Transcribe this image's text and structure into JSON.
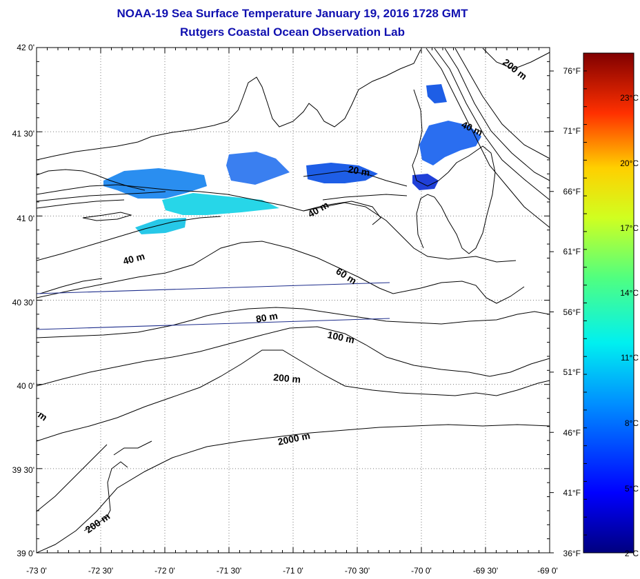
{
  "title": "NOAA-19 Sea Surface Temperature January 19, 2016 1728 GMT",
  "subtitle": "Rutgers Coastal Ocean Observation Lab",
  "lat_labels": [
    "42 0'",
    "41 30'",
    "41 0'",
    "40 30'",
    "40 0'",
    "39 30'",
    "39 0'"
  ],
  "lon_labels": [
    "-73 0'",
    "-72 30'",
    "-72 0'",
    "-71 30'",
    "-71 0'",
    "-70 30'",
    "-70 0'",
    "-69 30'",
    "-69 0'"
  ],
  "fahrenheit_labels": [
    "76°F",
    "71°F",
    "66°F",
    "61°F",
    "56°F",
    "51°F",
    "46°F",
    "41°F",
    "36°F"
  ],
  "celsius_labels": [
    "23°C",
    "20°C",
    "17°C",
    "14°C",
    "11°C",
    "8°C",
    "5°C",
    "2°C"
  ],
  "contour_labels": [
    "200 m",
    "40 m",
    "20 m",
    "40 m",
    "40 m",
    "60 m",
    "80 m",
    "100 m",
    "200 m",
    "2000 m",
    "200 m",
    "m"
  ],
  "colors": {
    "title": "#1010b0",
    "sst_cold": "#1e40d8",
    "sst_mid": "#2a8ef0",
    "sst_warm": "#27d6e8",
    "track": "#1a2a8a"
  }
}
